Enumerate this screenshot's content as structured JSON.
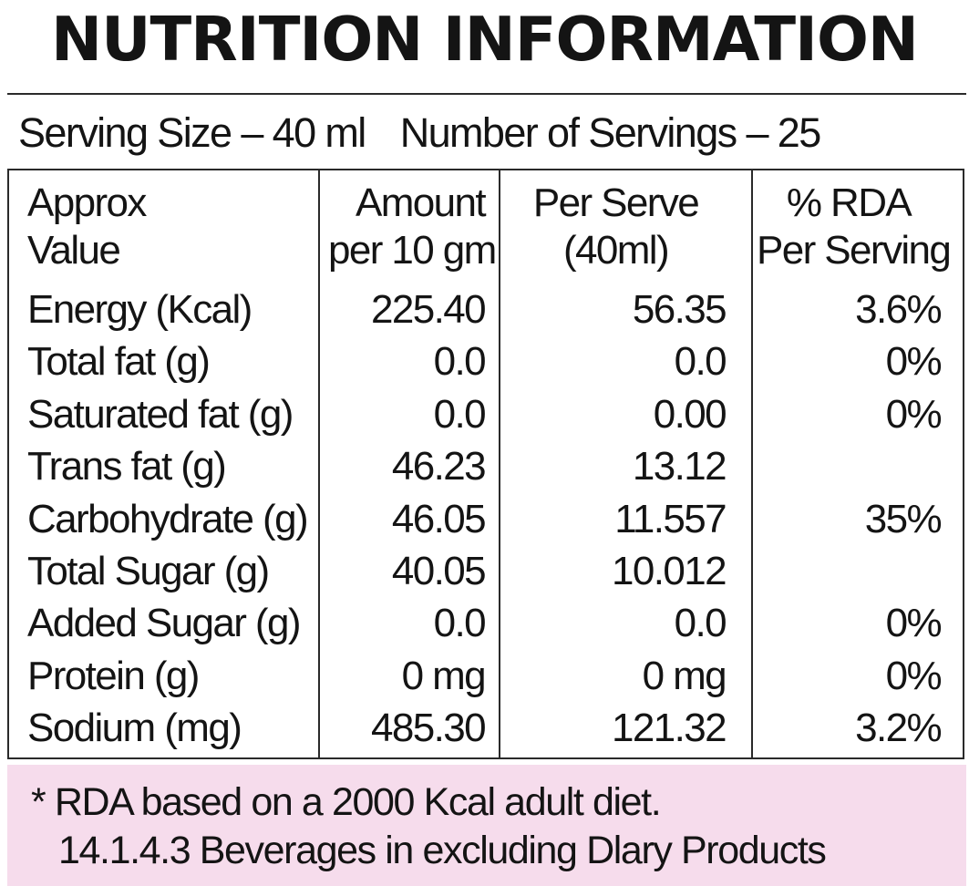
{
  "title": "NUTRITION INFORMATION",
  "serving": {
    "size": "Serving Size – 40 ml",
    "count": "Number of Servings – 25"
  },
  "table": {
    "headers": [
      [
        "Approx",
        "Value"
      ],
      [
        "Amount",
        "per 10 gm"
      ],
      [
        "Per Serve",
        "(40ml)"
      ],
      [
        "% RDA",
        "Per Serving"
      ]
    ],
    "rows": [
      [
        "Energy (Kcal)",
        "225.40",
        "56.35",
        "3.6%"
      ],
      [
        "Total fat (g)",
        "0.0",
        "0.0",
        "0%"
      ],
      [
        "Saturated fat (g)",
        "0.0",
        "0.00",
        "0%"
      ],
      [
        "Trans fat (g)",
        "46.23",
        "13.12",
        ""
      ],
      [
        "Carbohydrate (g)",
        "46.05",
        "11.557",
        "35%"
      ],
      [
        "Total Sugar (g)",
        "40.05",
        "10.012",
        ""
      ],
      [
        "Added Sugar (g)",
        "0.0",
        "0.0",
        "0%"
      ],
      [
        "Protein (g)",
        "0 mg",
        "0 mg",
        "0%"
      ],
      [
        "Sodium (mg)",
        "485.30",
        "121.32",
        "3.2%"
      ]
    ]
  },
  "footer": {
    "line1": "* RDA based on a 2000 Kcal adult diet.",
    "line2": "14.1.4.3 Beverages in excluding Dlary Products"
  },
  "colors": {
    "text": "#141414",
    "rule": "#2a2a2a",
    "footer_bg": "#f6dcec"
  }
}
